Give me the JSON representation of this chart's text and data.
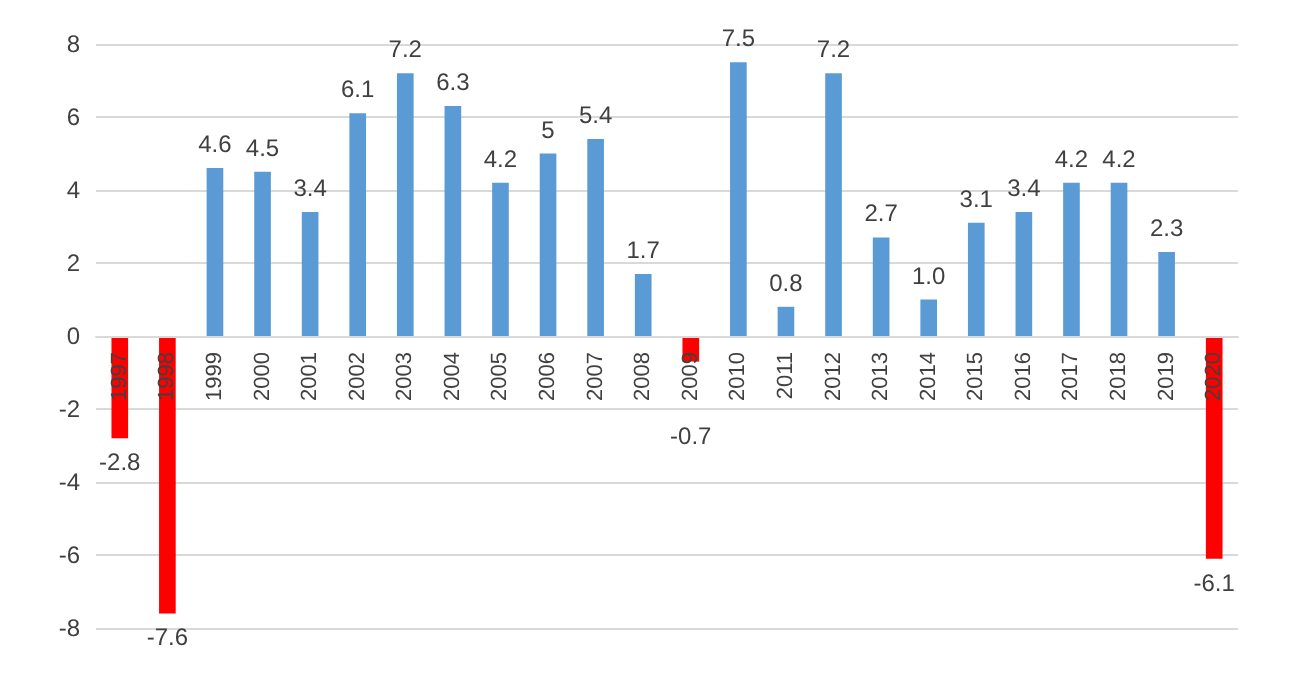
{
  "chart_data": {
    "type": "bar",
    "categories": [
      "1997",
      "1998",
      "1999",
      "2000",
      "2001",
      "2002",
      "2003",
      "2004",
      "2005",
      "2006",
      "2007",
      "2008",
      "2009",
      "2010",
      "2011",
      "2012",
      "2013",
      "2014",
      "2015",
      "2016",
      "2017",
      "2018",
      "2019",
      "2020"
    ],
    "values": [
      -2.8,
      -7.6,
      4.6,
      4.5,
      3.4,
      6.1,
      7.2,
      6.3,
      4.2,
      5,
      5.4,
      1.7,
      -0.7,
      7.5,
      0.8,
      7.2,
      2.7,
      1.0,
      3.1,
      3.4,
      4.2,
      4.2,
      2.3,
      -6.1
    ],
    "value_labels": [
      "-2.8",
      "-7.6",
      "4.6",
      "4.5",
      "3.4",
      "6.1",
      "7.2",
      "6.3",
      "4.2",
      "5",
      "5.4",
      "1.7",
      "-0.7",
      "7.5",
      "0.8",
      "7.2",
      "2.7",
      "1.0",
      "3.1",
      "3.4",
      "4.2",
      "4.2",
      "2.3",
      "-6.1"
    ],
    "colors": [
      "#ff0000",
      "#ff0000",
      "#5b9bd5",
      "#5b9bd5",
      "#5b9bd5",
      "#5b9bd5",
      "#5b9bd5",
      "#5b9bd5",
      "#5b9bd5",
      "#5b9bd5",
      "#5b9bd5",
      "#5b9bd5",
      "#ff0000",
      "#5b9bd5",
      "#5b9bd5",
      "#5b9bd5",
      "#5b9bd5",
      "#5b9bd5",
      "#5b9bd5",
      "#5b9bd5",
      "#5b9bd5",
      "#5b9bd5",
      "#5b9bd5",
      "#ff0000"
    ],
    "ylim": [
      -8,
      8
    ],
    "yticks": [
      -8,
      -6,
      -4,
      -2,
      0,
      2,
      4,
      6,
      8
    ],
    "grid": "y"
  }
}
